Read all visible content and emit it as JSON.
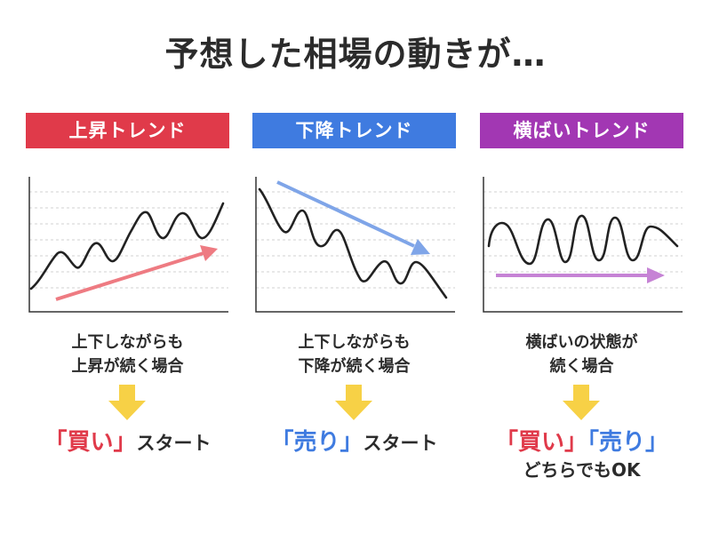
{
  "title": "予想した相場の動きが…",
  "colors": {
    "red": "#E03A4A",
    "blue": "#3F7BE0",
    "purple": "#A237B3",
    "arrow_red": "#EE7B82",
    "arrow_blue": "#7FA5E8",
    "arrow_purple": "#C683D5",
    "down_arrow": "#F7D146",
    "line": "#222222"
  },
  "panels": [
    {
      "label": "上昇トレンド",
      "desc_line1": "上下しながらも",
      "desc_line2": "上昇が続く場合",
      "result_open": "「買い」",
      "result_rest": "スタート",
      "icon": "down-arrow-icon"
    },
    {
      "label": "下降トレンド",
      "desc_line1": "上下しながらも",
      "desc_line2": "下降が続く場合",
      "result_open": "「売り」",
      "result_rest": "スタート",
      "icon": "down-arrow-icon"
    },
    {
      "label": "横ばいトレンド",
      "desc_line1": "横ばいの状態が",
      "desc_line2": "続く場合",
      "result_buy": "「買い」",
      "result_sell": "「売り」",
      "result_sub": "どちらでもOK",
      "icon": "down-arrow-icon"
    }
  ]
}
